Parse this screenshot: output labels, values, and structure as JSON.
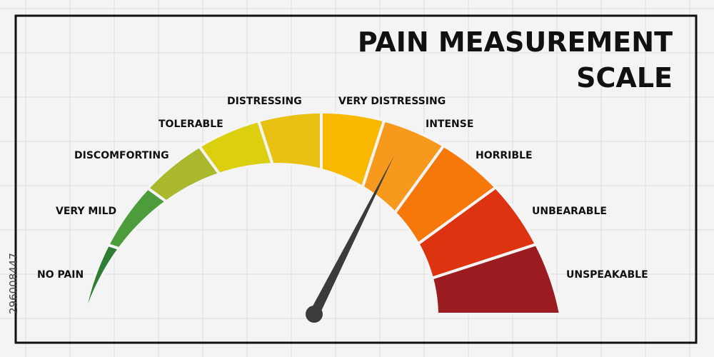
{
  "title_lines": [
    "PAIN MEASUREMENT",
    "SCALE"
  ],
  "levels": [
    "NO PAIN",
    "VERY MILD",
    "DISCOMFORTING",
    "TOLERABLE",
    "DISTRESSING",
    "VERY DISTRESSING",
    "INTENSE",
    "HORRIBLE",
    "UNBEARABLE",
    "UNSPEAKABLE"
  ],
  "image_id": "296008447"
}
